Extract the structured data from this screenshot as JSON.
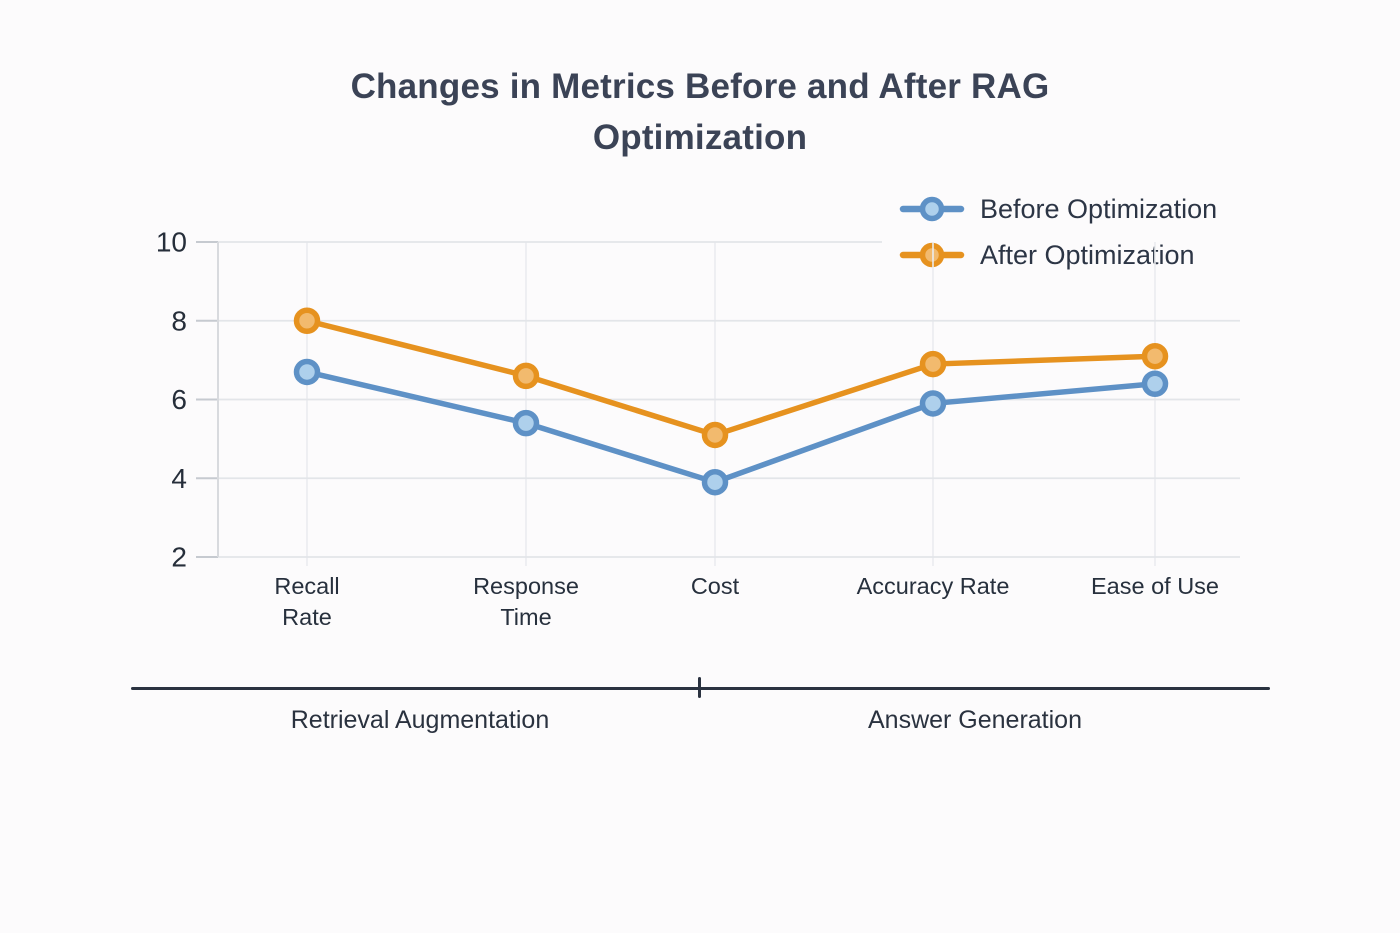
{
  "title": "Changes in Metrics Before and After RAG Optimization",
  "chart_data": {
    "type": "line",
    "title": "Changes in Metrics Before and After RAG Optimization",
    "categories": [
      "Recall Rate",
      "Response Time",
      "Cost",
      "Accuracy Rate",
      "Ease of Use"
    ],
    "series": [
      {
        "name": "Before Optimization",
        "color": "#5e91c6",
        "marker_fill": "#aed0ec",
        "values": [
          6.7,
          5.4,
          3.9,
          5.9,
          6.4
        ]
      },
      {
        "name": "After Optimization",
        "color": "#e6921f",
        "marker_fill": "#f2ba6e",
        "values": [
          8.0,
          6.6,
          5.1,
          6.9,
          7.1
        ]
      }
    ],
    "y_ticks": [
      2,
      4,
      6,
      8,
      10
    ],
    "ylim": [
      2,
      10
    ],
    "xlabel": "",
    "ylabel": "",
    "grid": true,
    "legend_position": "top-right"
  },
  "group_axis": {
    "groups": [
      {
        "label": "Retrieval Augmentation"
      },
      {
        "label": "Answer Generation"
      }
    ]
  }
}
